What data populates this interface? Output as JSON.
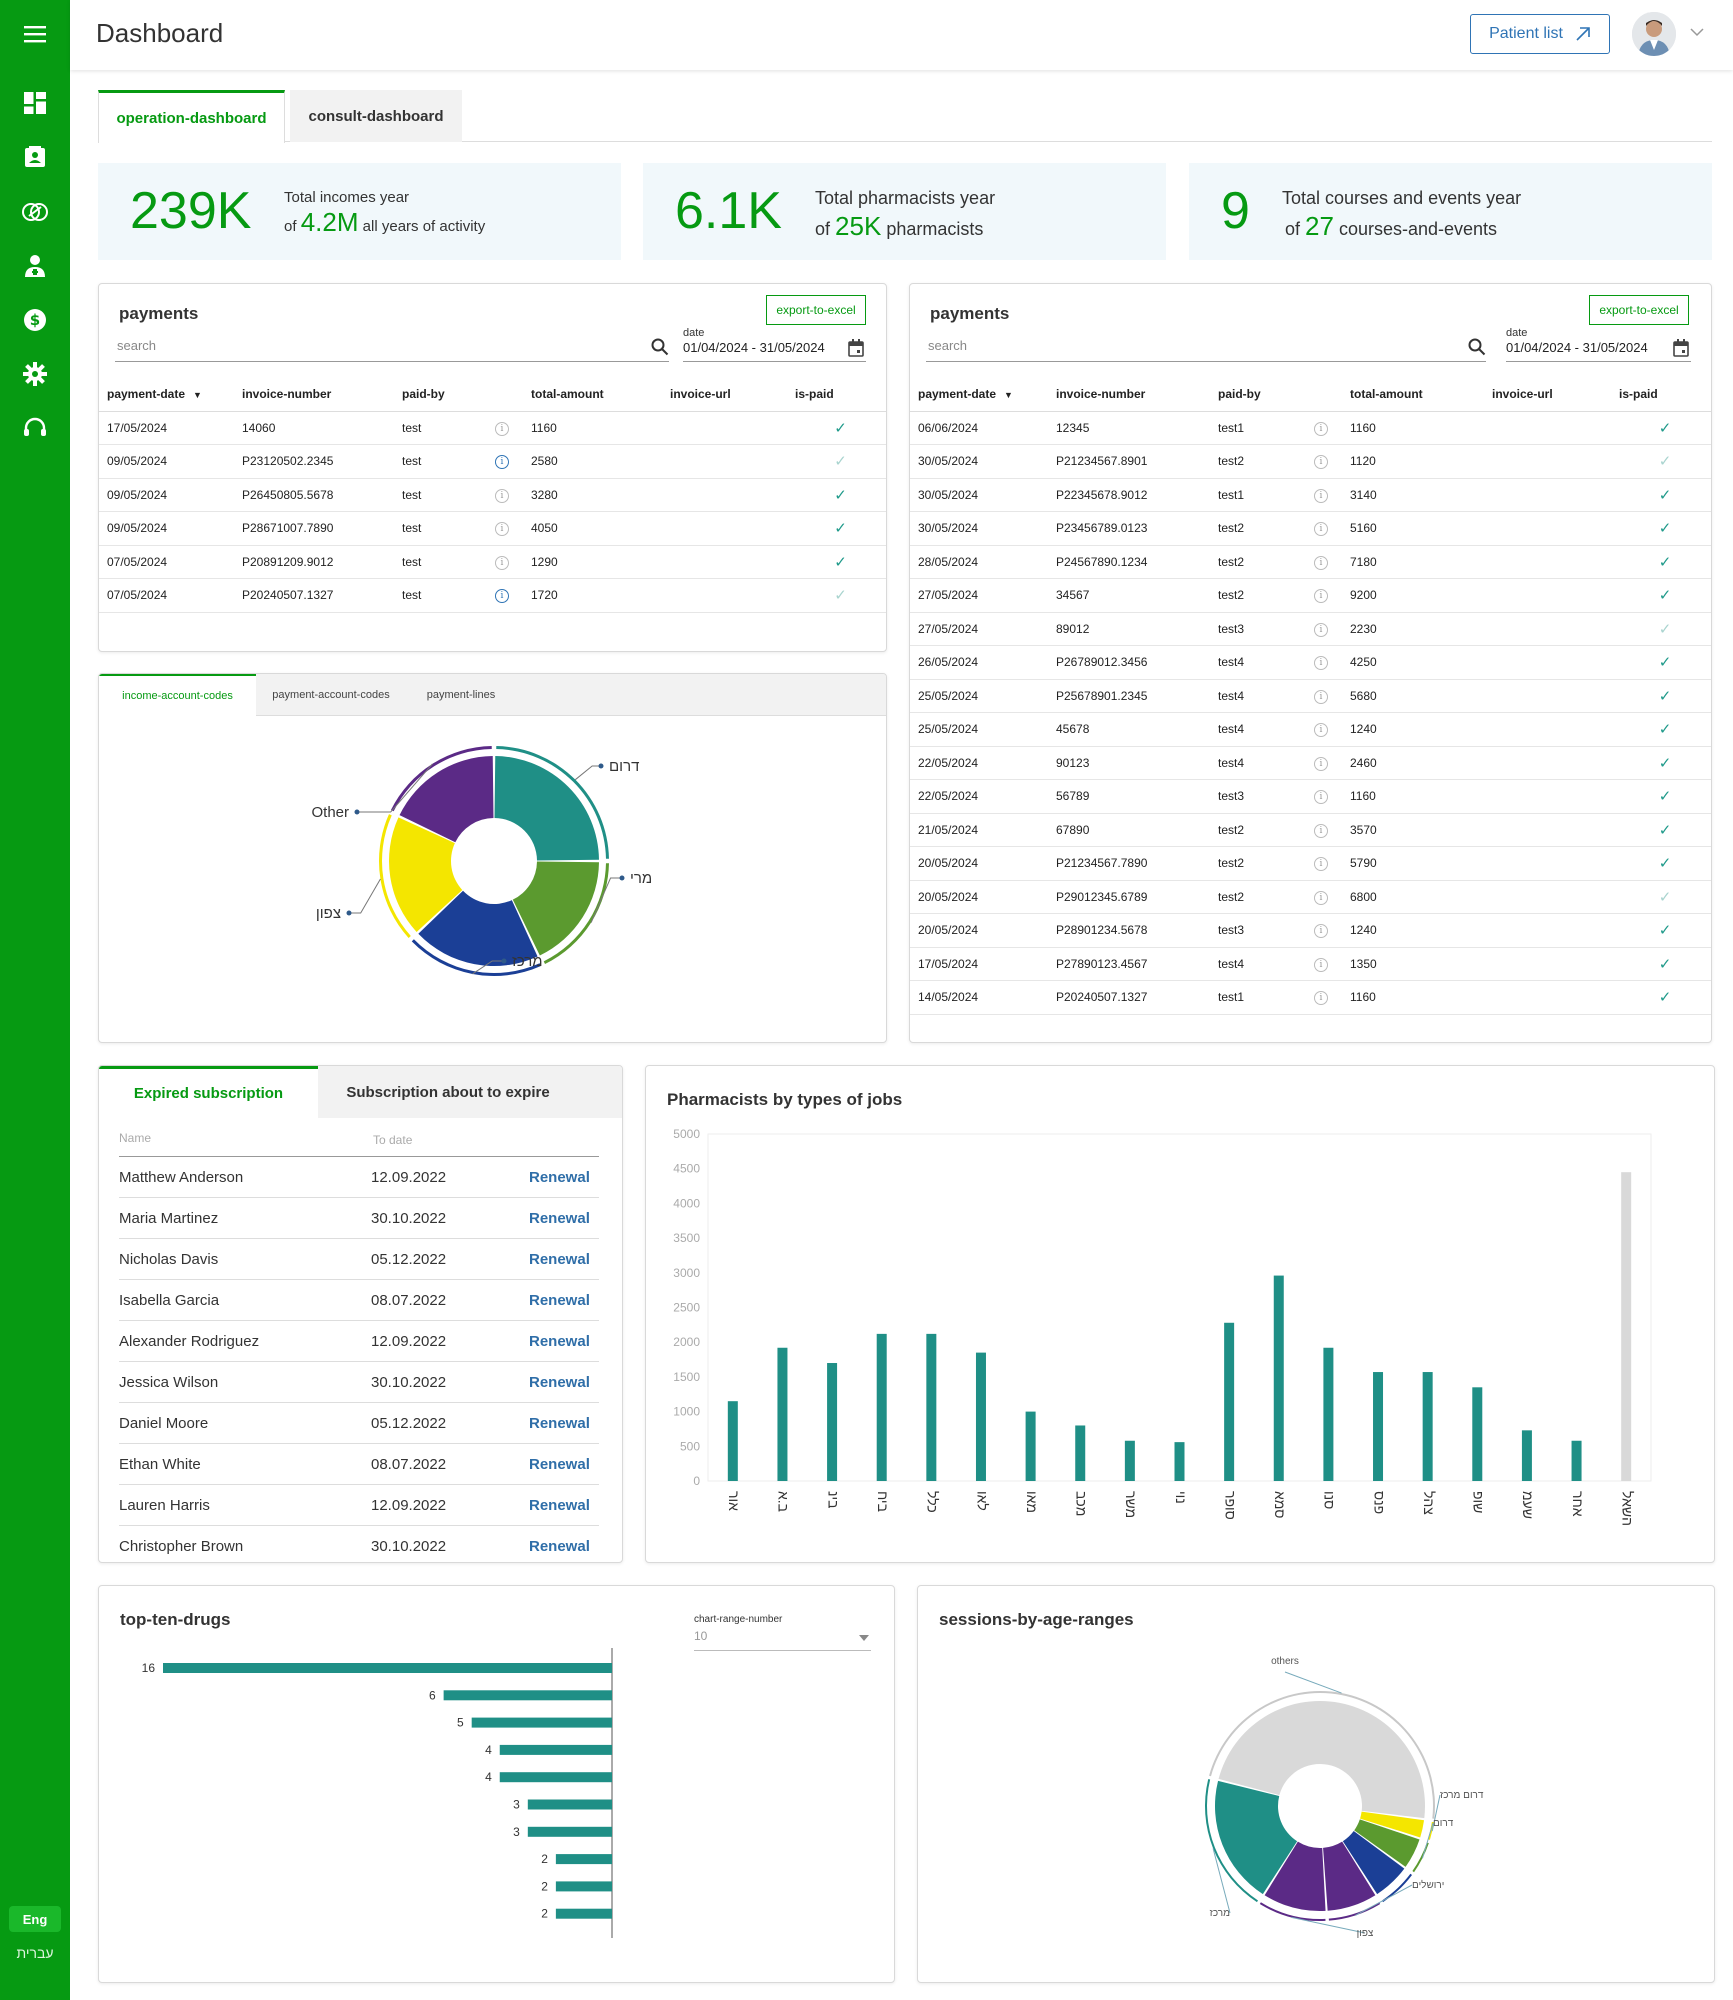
{
  "header": {
    "title": "Dashboard",
    "patient_list_label": "Patient list"
  },
  "sidebar": {
    "items": [
      {
        "icon": "menu-icon"
      },
      {
        "icon": "dashboard-icon"
      },
      {
        "icon": "contacts-icon"
      },
      {
        "icon": "pill-icon"
      },
      {
        "icon": "pharmacist-icon"
      },
      {
        "icon": "dollar-icon"
      },
      {
        "icon": "gear-icon"
      },
      {
        "icon": "support-icon"
      }
    ],
    "lang_active": "Eng",
    "lang_alt": "עברית"
  },
  "tabs": [
    "operation-dashboard",
    "consult-dashboard"
  ],
  "stats": [
    {
      "big": "239K",
      "line1": "Total incomes year",
      "prefix": "of",
      "value": "4.2M",
      "suffix": "all years of activity"
    },
    {
      "big": "6.1K",
      "line1": "Total pharmacists year",
      "prefix": "of",
      "value": "25K",
      "suffix": "pharmacists"
    },
    {
      "big": "9",
      "line1": "Total courses and events year",
      "prefix": "of",
      "value": "27",
      "suffix": "courses-and-events"
    }
  ],
  "payments_common": {
    "title": "payments",
    "export_label": "export-to-excel",
    "search_placeholder": "search",
    "date_label": "date",
    "date_range": "01/04/2024 - 31/05/2024",
    "columns": [
      "payment-date",
      "invoice-number",
      "paid-by",
      "",
      "total-amount",
      "invoice-url",
      "is-paid"
    ]
  },
  "payments_left": [
    {
      "date": "17/05/2024",
      "invoice": "14060",
      "by": "test",
      "info": "grey",
      "amount": "1160",
      "paid": "dark"
    },
    {
      "date": "09/05/2024",
      "invoice": "P23120502.2345",
      "by": "test",
      "info": "blue",
      "amount": "2580",
      "paid": "light"
    },
    {
      "date": "09/05/2024",
      "invoice": "P26450805.5678",
      "by": "test",
      "info": "grey",
      "amount": "3280",
      "paid": "dark"
    },
    {
      "date": "09/05/2024",
      "invoice": "P28671007.7890",
      "by": "test",
      "info": "grey",
      "amount": "4050",
      "paid": "dark"
    },
    {
      "date": "07/05/2024",
      "invoice": "P20891209.9012",
      "by": "test",
      "info": "grey",
      "amount": "1290",
      "paid": "dark"
    },
    {
      "date": "07/05/2024",
      "invoice": "P20240507.1327",
      "by": "test",
      "info": "blue",
      "amount": "1720",
      "paid": "light"
    }
  ],
  "payments_right": [
    {
      "date": "06/06/2024",
      "invoice": "12345",
      "by": "test1",
      "amount": "1160",
      "paid": "dark"
    },
    {
      "date": "30/05/2024",
      "invoice": "P21234567.8901",
      "by": "test2",
      "amount": "1120",
      "paid": "light"
    },
    {
      "date": "30/05/2024",
      "invoice": "P22345678.9012",
      "by": "test1",
      "amount": "3140",
      "paid": "dark"
    },
    {
      "date": "30/05/2024",
      "invoice": "P23456789.0123",
      "by": "test2",
      "amount": "5160",
      "paid": "dark"
    },
    {
      "date": "28/05/2024",
      "invoice": "P24567890.1234",
      "by": "test2",
      "amount": "7180",
      "paid": "dark"
    },
    {
      "date": "27/05/2024",
      "invoice": "34567",
      "by": "test2",
      "amount": "9200",
      "paid": "dark"
    },
    {
      "date": "27/05/2024",
      "invoice": "89012",
      "by": "test3",
      "amount": "2230",
      "paid": "light"
    },
    {
      "date": "26/05/2024",
      "invoice": "P26789012.3456",
      "by": "test4",
      "amount": "4250",
      "paid": "dark"
    },
    {
      "date": "25/05/2024",
      "invoice": "P25678901.2345",
      "by": "test4",
      "amount": "5680",
      "paid": "dark"
    },
    {
      "date": "25/05/2024",
      "invoice": "45678",
      "by": "test4",
      "amount": "1240",
      "paid": "dark"
    },
    {
      "date": "22/05/2024",
      "invoice": "90123",
      "by": "test4",
      "amount": "2460",
      "paid": "dark"
    },
    {
      "date": "22/05/2024",
      "invoice": "56789",
      "by": "test3",
      "amount": "1160",
      "paid": "dark"
    },
    {
      "date": "21/05/2024",
      "invoice": "67890",
      "by": "test2",
      "amount": "3570",
      "paid": "dark"
    },
    {
      "date": "20/05/2024",
      "invoice": "P21234567.7890",
      "by": "test2",
      "amount": "5790",
      "paid": "dark"
    },
    {
      "date": "20/05/2024",
      "invoice": "P29012345.6789",
      "by": "test2",
      "amount": "6800",
      "paid": "light"
    },
    {
      "date": "20/05/2024",
      "invoice": "P28901234.5678",
      "by": "test3",
      "amount": "1240",
      "paid": "dark"
    },
    {
      "date": "17/05/2024",
      "invoice": "P27890123.4567",
      "by": "test4",
      "amount": "1350",
      "paid": "dark"
    },
    {
      "date": "14/05/2024",
      "invoice": "P20240507.1327",
      "by": "test1",
      "amount": "1160",
      "paid": "dark"
    }
  ],
  "income_tabs": [
    "income-account-codes",
    "payment-account-codes",
    "payment-lines"
  ],
  "subscription": {
    "tabs": [
      "Expired subscription",
      "Subscription about to expire"
    ],
    "col_name": "Name",
    "col_date": "To date",
    "renew_label": "Renewal",
    "rows": [
      {
        "name": "Matthew Anderson",
        "date": "12.09.2022"
      },
      {
        "name": "Maria Martinez",
        "date": "30.10.2022"
      },
      {
        "name": "Nicholas Davis",
        "date": "05.12.2022"
      },
      {
        "name": "Isabella Garcia",
        "date": "08.07.2022"
      },
      {
        "name": "Alexander Rodriguez",
        "date": "12.09.2022"
      },
      {
        "name": "Jessica Wilson",
        "date": "30.10.2022"
      },
      {
        "name": "Daniel Moore",
        "date": "05.12.2022"
      },
      {
        "name": "Ethan White",
        "date": "08.07.2022"
      },
      {
        "name": "Lauren Harris",
        "date": "12.09.2022"
      },
      {
        "name": "Christopher Brown",
        "date": "30.10.2022"
      }
    ]
  },
  "top_drugs": {
    "title": "top-ten-drugs",
    "range_label": "chart-range-number",
    "range_value": "10"
  },
  "sessions": {
    "title": "sessions-by-age-ranges"
  },
  "pharm_title": "Pharmacists by types of jobs",
  "chart_data": [
    {
      "type": "pie",
      "variant": "donut",
      "labels": [
        "דרום",
        "מרי",
        "מרכז",
        "צפון",
        "Other"
      ],
      "values": [
        25,
        18,
        20,
        19,
        18
      ],
      "colors": [
        "#1f8f86",
        "#5b9a2f",
        "#1b3f96",
        "#f4e600",
        "#5b2a86"
      ]
    },
    {
      "type": "bar",
      "title": "Pharmacists by types of jobs",
      "categories": [
        "אור",
        "ב.א",
        "בינ",
        "ביח",
        "כלל",
        "לאו",
        "מאו",
        "מכב",
        "משר",
        "נוי",
        "סופר",
        "סמא",
        "סנו",
        "פנס",
        "צהל",
        "שופ",
        "שעמ",
        "אחר",
        "השאל"
      ],
      "values": [
        1150,
        1920,
        1700,
        2120,
        2120,
        1850,
        1000,
        800,
        580,
        560,
        2280,
        2960,
        1920,
        1570,
        1570,
        1350,
        730,
        580,
        4450
      ],
      "ylim": [
        0,
        5000
      ],
      "yticks": [
        0,
        500,
        1000,
        1500,
        2000,
        2500,
        3000,
        3500,
        4000,
        4500,
        5000
      ],
      "colors": {
        "bar": "#1f8f86",
        "last": "#d9d9d9"
      }
    },
    {
      "type": "bar",
      "orientation": "horizontal",
      "title": "top-ten-drugs",
      "values": [
        16,
        6,
        5,
        4,
        4,
        3,
        3,
        2,
        2,
        2
      ],
      "xlim": [
        0,
        16
      ]
    },
    {
      "type": "pie",
      "variant": "donut",
      "title": "sessions-by-age-ranges",
      "labels": [
        "others",
        "דרום מרכז",
        "דרום",
        "",
        "ירושלים",
        "צפון",
        "מרכז"
      ],
      "values": [
        48,
        3,
        5,
        6,
        8,
        10,
        20
      ],
      "colors": [
        "#d9d9d9",
        "#f4e600",
        "#5b9a2f",
        "#1b3f96",
        "#5b2a86",
        "#5b2a86",
        "#1f8f86"
      ]
    }
  ]
}
